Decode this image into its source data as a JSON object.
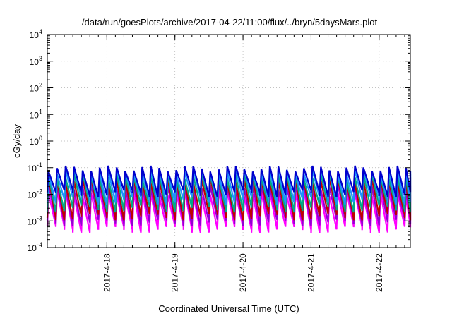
{
  "chart_data": {
    "type": "line",
    "title": "/data/run/goesPlots/archive/2017-04-22/11:00/flux/../bryn/5daysMars.plot",
    "xlabel": "Coordinated Universal Time (UTC)",
    "ylabel": "cGy/day",
    "x_tick_labels": [
      "2017-4-18",
      "2017-4-19",
      "2017-4-20",
      "2017-4-21",
      "2017-4-22"
    ],
    "x_range": [
      "2017-04-17T03:00",
      "2017-04-22T11:00"
    ],
    "y_tick_labels": [
      {
        "base": "10",
        "exp": "-4"
      },
      {
        "base": "10",
        "exp": "-3"
      },
      {
        "base": "10",
        "exp": "-2"
      },
      {
        "base": "10",
        "exp": "-1"
      },
      {
        "base": "10",
        "exp": "0"
      },
      {
        "base": "10",
        "exp": "1"
      },
      {
        "base": "10",
        "exp": "2"
      },
      {
        "base": "10",
        "exp": "3"
      },
      {
        "base": "10",
        "exp": "4"
      }
    ],
    "ylim": [
      0.0001,
      10000
    ],
    "y_scale": "log",
    "grid": true,
    "oscillation_period_hours": 3,
    "series": [
      {
        "color": "#ff00ff",
        "peak": 0.011,
        "trough": 0.0005
      },
      {
        "color": "#9400d3",
        "peak": 0.02,
        "trough": 0.0009
      },
      {
        "color": "#c00000",
        "peak": 0.035,
        "trough": 0.0015
      },
      {
        "color": "#00aa88",
        "peak": 0.05,
        "trough": 0.003
      },
      {
        "color": "#1e90ff",
        "peak": 0.075,
        "trough": 0.006
      },
      {
        "color": "#0000cd",
        "peak": 0.095,
        "trough": 0.011
      }
    ]
  }
}
